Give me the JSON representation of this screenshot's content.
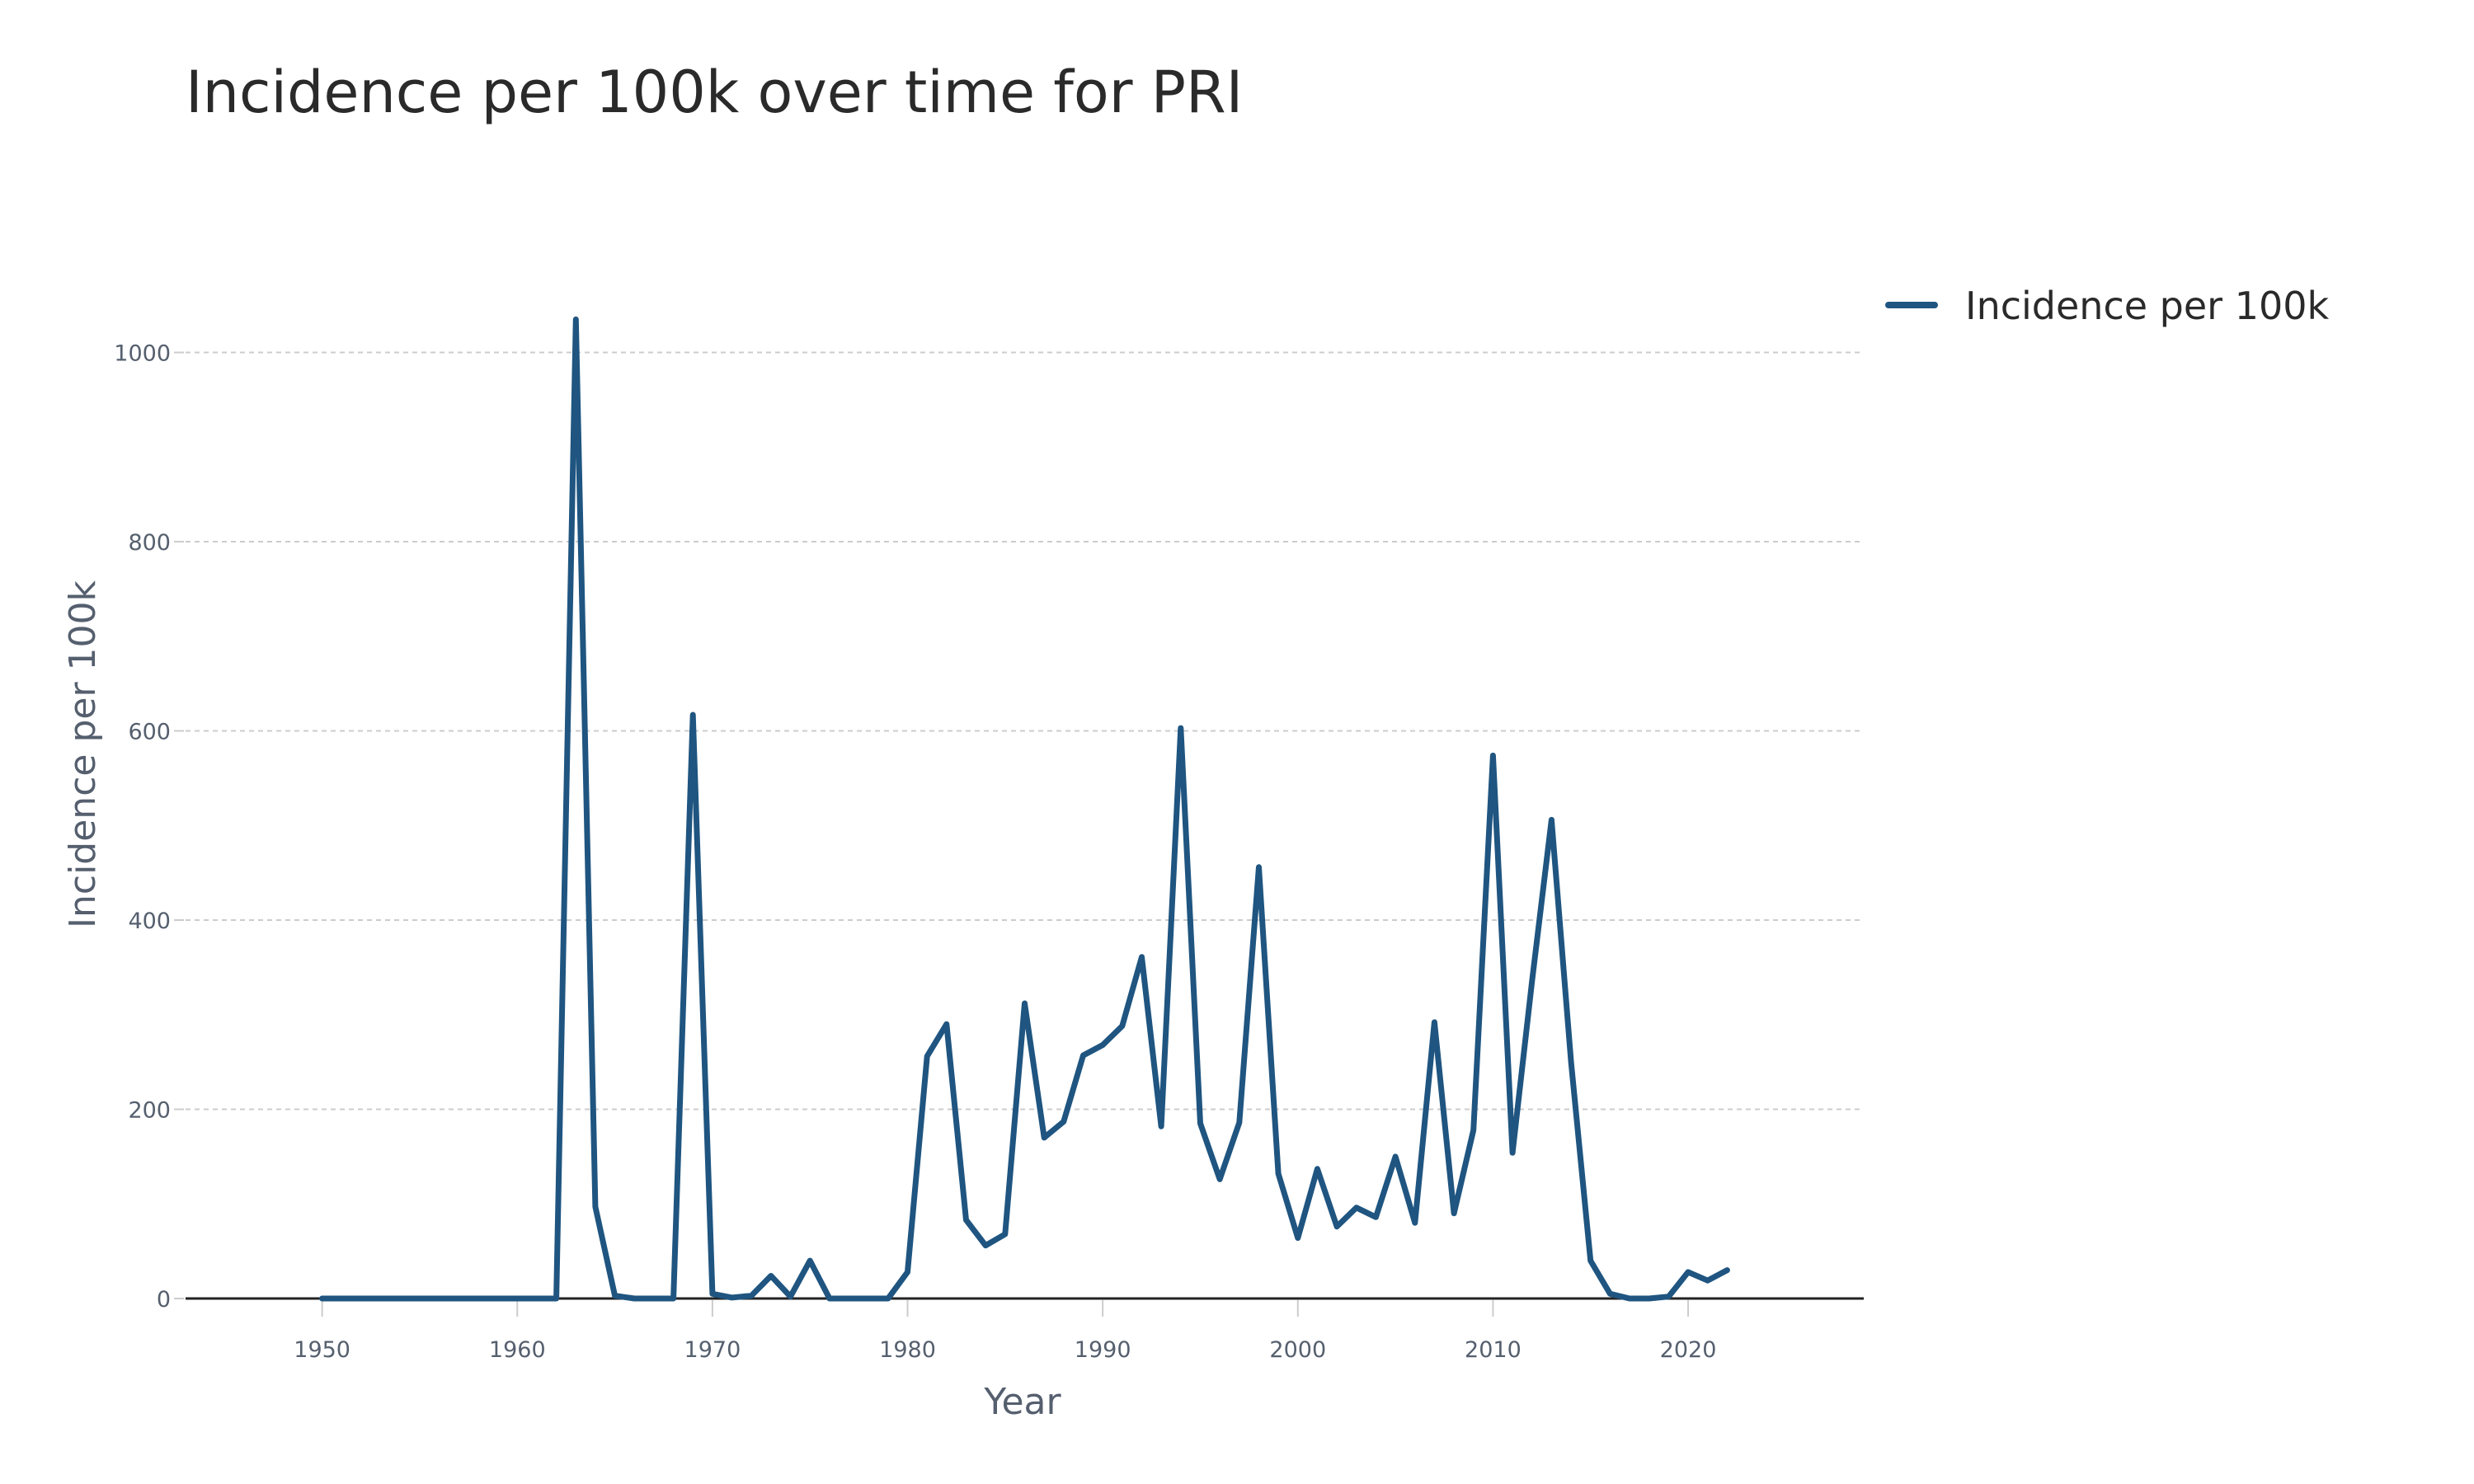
{
  "chart_data": {
    "type": "line",
    "title": "Incidence per 100k over time for PRI",
    "xlabel": "Year",
    "ylabel": "Incidence per 100k",
    "xlim": [
      1943,
      2029
    ],
    "ylim": [
      0,
      1085
    ],
    "x_ticks": [
      1950,
      1960,
      1970,
      1980,
      1990,
      2000,
      2010,
      2020
    ],
    "y_ticks": [
      0,
      200,
      400,
      600,
      800,
      1000
    ],
    "grid": true,
    "legend_position": "top-right",
    "colors": {
      "line": "#1f5580",
      "grid": "#cccccc",
      "zero_line": "#222222"
    },
    "series": [
      {
        "name": "Incidence per 100k",
        "x": [
          1950,
          1951,
          1952,
          1953,
          1954,
          1955,
          1956,
          1957,
          1958,
          1959,
          1960,
          1961,
          1962,
          1963,
          1964,
          1965,
          1966,
          1967,
          1968,
          1969,
          1970,
          1971,
          1972,
          1973,
          1974,
          1975,
          1976,
          1977,
          1978,
          1979,
          1980,
          1981,
          1982,
          1983,
          1984,
          1985,
          1986,
          1987,
          1988,
          1989,
          1990,
          1991,
          1992,
          1993,
          1994,
          1995,
          1996,
          1997,
          1998,
          1999,
          2000,
          2001,
          2002,
          2003,
          2004,
          2005,
          2006,
          2007,
          2008,
          2009,
          2010,
          2011,
          2012,
          2013,
          2014,
          2015,
          2016,
          2017,
          2018,
          2019,
          2020,
          2021,
          2022
        ],
        "y": [
          0,
          0,
          0,
          0,
          0,
          0,
          0,
          0,
          0,
          0,
          0,
          0,
          0,
          1035,
          97,
          3,
          0,
          0,
          0,
          617,
          5,
          1,
          3,
          24,
          2,
          40,
          0,
          0,
          0,
          0,
          28,
          256,
          290,
          83,
          56,
          68,
          312,
          170,
          187,
          257,
          268,
          288,
          361,
          182,
          603,
          185,
          126,
          186,
          456,
          132,
          64,
          137,
          76,
          96,
          86,
          150,
          80,
          292,
          90,
          178,
          574,
          154,
          335,
          506,
          250,
          40,
          5,
          0,
          0,
          2,
          28,
          19,
          30
        ]
      }
    ]
  }
}
